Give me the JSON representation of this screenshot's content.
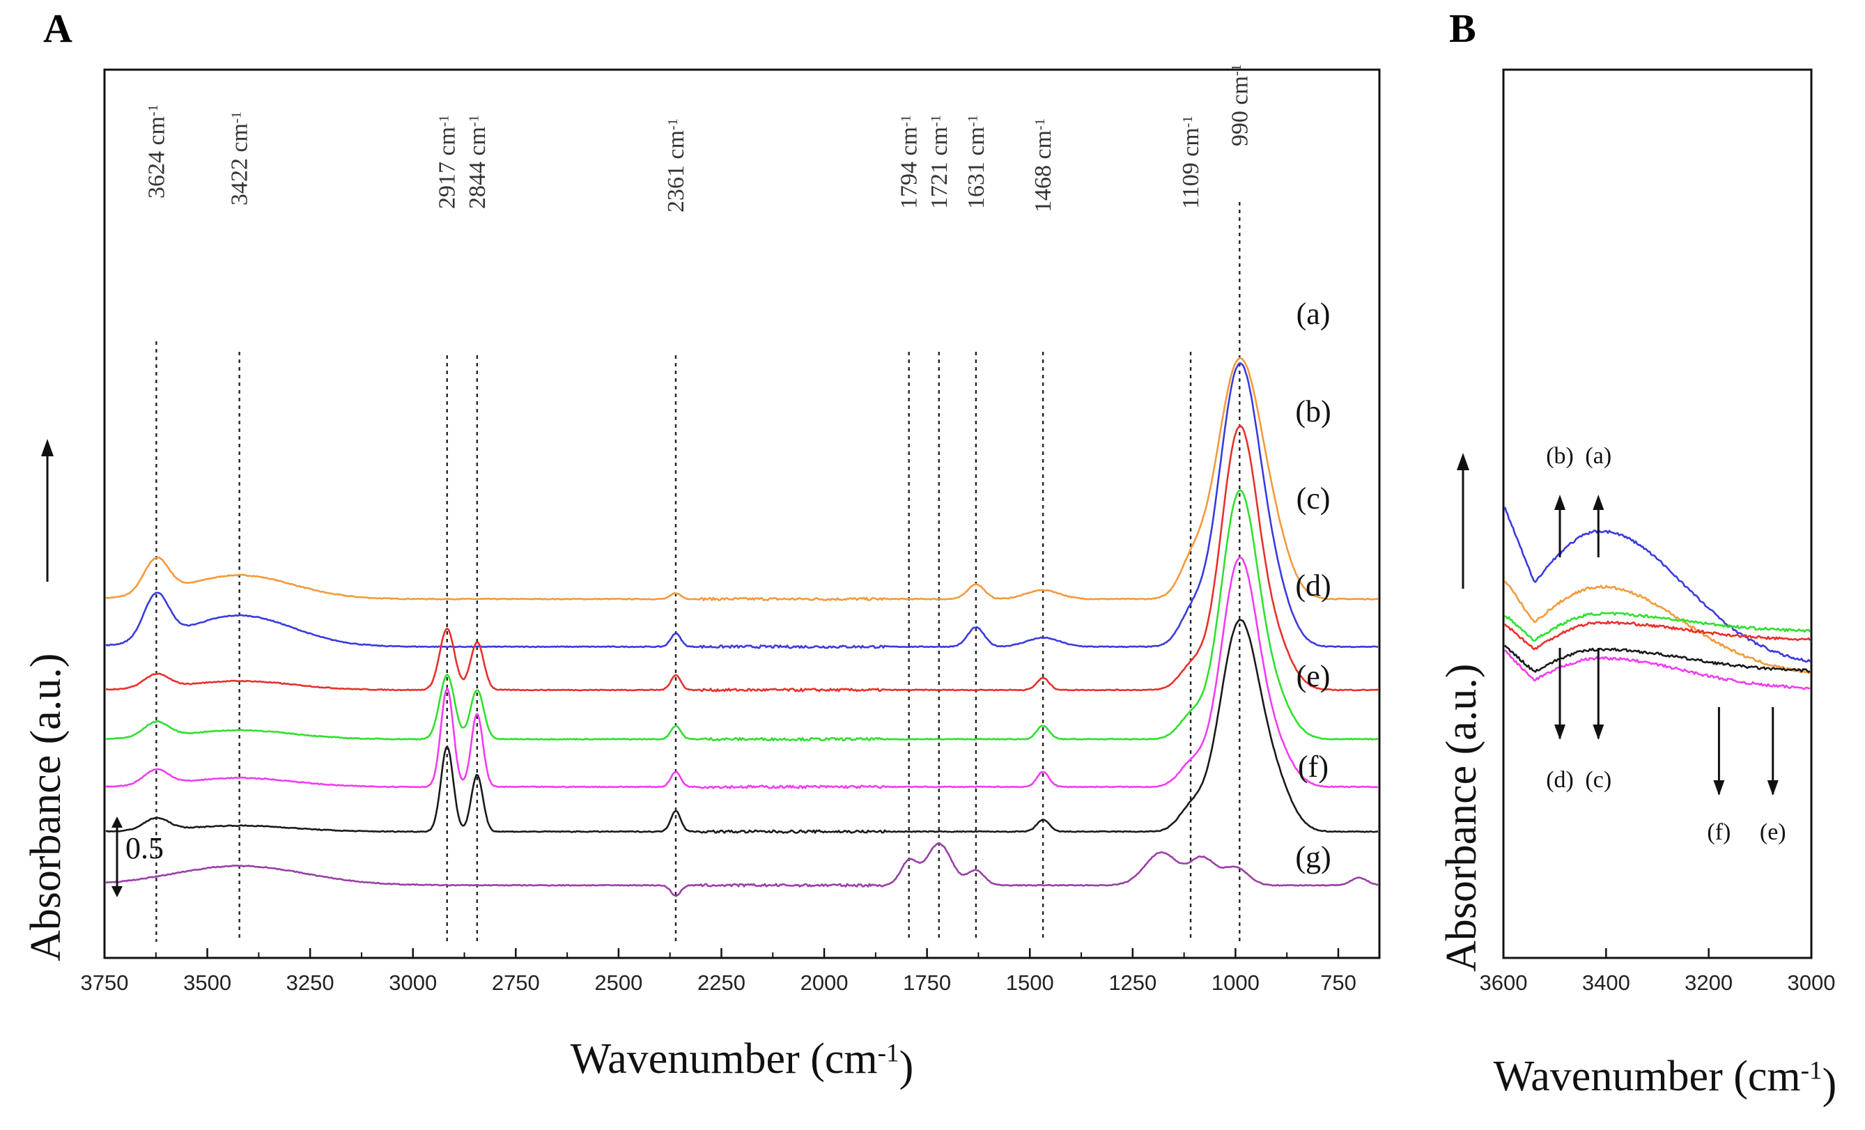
{
  "chart_data": [
    {
      "panel": "A",
      "type": "line",
      "xlabel": "Wavenumber (cm",
      "xlabel_sup": "-1",
      "xlabel_tail": ")",
      "ylabel": "Absorbance (a.u.)",
      "xlim": [
        3750,
        650
      ],
      "xticks": [
        3750,
        3500,
        3250,
        3000,
        2750,
        2500,
        2250,
        2000,
        1750,
        1500,
        1250,
        1000,
        750
      ],
      "scale_bar": "0.5",
      "peak_labels": [
        {
          "wn": 3624,
          "text": "3624 cm",
          "sup": "-1"
        },
        {
          "wn": 3422,
          "text": "3422 cm",
          "sup": "-1"
        },
        {
          "wn": 2917,
          "text": "2917 cm",
          "sup": "-1"
        },
        {
          "wn": 2844,
          "text": "2844 cm",
          "sup": "-1"
        },
        {
          "wn": 2361,
          "text": "2361 cm",
          "sup": "-1"
        },
        {
          "wn": 1794,
          "text": "1794 cm",
          "sup": "-1"
        },
        {
          "wn": 1721,
          "text": "1721 cm",
          "sup": "-1"
        },
        {
          "wn": 1631,
          "text": "1631 cm",
          "sup": "-1"
        },
        {
          "wn": 1468,
          "text": "1468 cm",
          "sup": "-1"
        },
        {
          "wn": 1109,
          "text": "1109 cm",
          "sup": "-1"
        },
        {
          "wn": 990,
          "text": "990 cm",
          "sup": "-1"
        }
      ],
      "series": [
        {
          "name": "(a)",
          "color": "#f39a3c",
          "baseline": 1.94,
          "slope": 4e-05,
          "peaks": [
            [
              3624,
              0.23,
              30
            ],
            [
              3422,
              0.16,
              130
            ],
            [
              2361,
              0.04,
              12
            ],
            [
              1631,
              0.1,
              20
            ],
            [
              1468,
              0.06,
              40
            ],
            [
              1109,
              0.18,
              30
            ],
            [
              990,
              1.6,
              55
            ],
            [
              900,
              0.2,
              40
            ]
          ]
        },
        {
          "name": "(b)",
          "color": "#3a3ae0",
          "baseline": 1.62,
          "slope": 4e-05,
          "peaks": [
            [
              3624,
              0.3,
              30
            ],
            [
              3422,
              0.21,
              130
            ],
            [
              2361,
              0.09,
              12
            ],
            [
              1631,
              0.13,
              20
            ],
            [
              1468,
              0.06,
              40
            ],
            [
              1109,
              0.18,
              30
            ],
            [
              990,
              1.88,
              50
            ],
            [
              900,
              0.25,
              40
            ]
          ]
        },
        {
          "name": "(c)",
          "color": "#e8302b",
          "baseline": 1.33,
          "slope": 4e-05,
          "peaks": [
            [
              3624,
              0.09,
              30
            ],
            [
              3422,
              0.06,
              130
            ],
            [
              2917,
              0.41,
              18
            ],
            [
              2844,
              0.32,
              16
            ],
            [
              2361,
              0.1,
              12
            ],
            [
              1468,
              0.08,
              15
            ],
            [
              1109,
              0.14,
              30
            ],
            [
              990,
              1.75,
              45
            ],
            [
              900,
              0.25,
              40
            ]
          ]
        },
        {
          "name": "(d)",
          "color": "#2fe02f",
          "baseline": 1.0,
          "slope": 4e-05,
          "peaks": [
            [
              3624,
              0.1,
              30
            ],
            [
              3422,
              0.06,
              130
            ],
            [
              2917,
              0.43,
              18
            ],
            [
              2844,
              0.33,
              16
            ],
            [
              2361,
              0.09,
              12
            ],
            [
              1468,
              0.09,
              15
            ],
            [
              1109,
              0.14,
              30
            ],
            [
              990,
              1.65,
              45
            ],
            [
              900,
              0.22,
              40
            ]
          ]
        },
        {
          "name": "(e)",
          "color": "#f23cf2",
          "baseline": 0.68,
          "slope": 4e-05,
          "peaks": [
            [
              3624,
              0.1,
              30
            ],
            [
              3422,
              0.06,
              130
            ],
            [
              2917,
              0.66,
              15
            ],
            [
              2844,
              0.49,
              14
            ],
            [
              2361,
              0.1,
              12
            ],
            [
              1468,
              0.1,
              15
            ],
            [
              1109,
              0.14,
              30
            ],
            [
              990,
              1.52,
              45
            ],
            [
              900,
              0.22,
              40
            ]
          ]
        },
        {
          "name": "(f)",
          "color": "#1a1a1a",
          "baseline": 0.38,
          "slope": 4e-05,
          "peaks": [
            [
              3624,
              0.08,
              30
            ],
            [
              3422,
              0.04,
              130
            ],
            [
              2917,
              0.57,
              15
            ],
            [
              2844,
              0.38,
              14
            ],
            [
              2361,
              0.14,
              12
            ],
            [
              1468,
              0.08,
              15
            ],
            [
              1109,
              0.14,
              30
            ],
            [
              990,
              1.4,
              48
            ],
            [
              900,
              0.25,
              40
            ]
          ]
        },
        {
          "name": "(g)",
          "color": "#9a3fa8",
          "baseline": 0.02,
          "slope": 2e-05,
          "peaks": [
            [
              3422,
              0.13,
              160
            ],
            [
              2361,
              -0.07,
              12
            ],
            [
              1794,
              0.16,
              20
            ],
            [
              1721,
              0.28,
              30
            ],
            [
              1631,
              0.1,
              20
            ],
            [
              1180,
              0.22,
              40
            ],
            [
              1080,
              0.18,
              30
            ],
            [
              1000,
              0.12,
              30
            ],
            [
              700,
              0.05,
              20
            ]
          ]
        }
      ]
    },
    {
      "panel": "B",
      "type": "line",
      "xlabel": "Wavenumber (cm",
      "xlabel_sup": "-1",
      "xlabel_tail": ")",
      "ylabel": "Absorbance (a.u.)",
      "xlim": [
        3600,
        3000
      ],
      "xticks": [
        3600,
        3400,
        3200,
        3000
      ],
      "arrows": [
        {
          "label": "(b)",
          "wn": 3490,
          "direction": "up"
        },
        {
          "label": "(a)",
          "wn": 3415,
          "direction": "up"
        },
        {
          "label": "(d)",
          "wn": 3490,
          "direction": "down"
        },
        {
          "label": "(c)",
          "wn": 3415,
          "direction": "down"
        },
        {
          "label": "(f)",
          "wn": 3180,
          "direction": "down"
        },
        {
          "label": "(e)",
          "wn": 3075,
          "direction": "down"
        }
      ],
      "series": [
        {
          "name": "(b)",
          "color": "#3a3ae0",
          "start": 1.05,
          "min": 0.7,
          "peak": 0.93,
          "end": 0.32
        },
        {
          "name": "(a)",
          "color": "#f39a3c",
          "start": 0.72,
          "min": 0.52,
          "peak": 0.68,
          "end": 0.28
        },
        {
          "name": "(d)",
          "color": "#2fe02f",
          "start": 0.56,
          "min": 0.44,
          "peak": 0.56,
          "end": 0.48
        },
        {
          "name": "(c)",
          "color": "#e8302b",
          "start": 0.52,
          "min": 0.4,
          "peak": 0.52,
          "end": 0.44
        },
        {
          "name": "(f)",
          "color": "#1a1a1a",
          "start": 0.42,
          "min": 0.3,
          "peak": 0.4,
          "end": 0.3
        },
        {
          "name": "(e)",
          "color": "#f23cf2",
          "start": 0.4,
          "min": 0.26,
          "peak": 0.36,
          "end": 0.22
        }
      ]
    }
  ]
}
